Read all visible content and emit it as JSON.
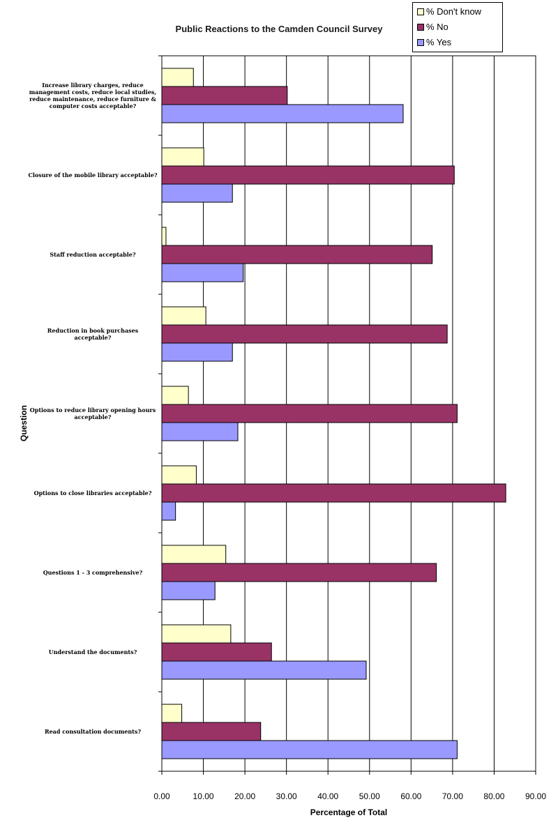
{
  "chart_data": {
    "type": "bar",
    "orientation": "horizontal",
    "title": "Public Reactions to the Camden Council Survey",
    "xlabel": "Percentage of Total",
    "ylabel": "Question",
    "xlim": [
      0,
      90
    ],
    "xticks": [
      "0.00",
      "10.00",
      "20.00",
      "30.00",
      "40.00",
      "50.00",
      "60.00",
      "70.00",
      "80.00",
      "90.00"
    ],
    "grid": "vertical",
    "legend_position": "top-right",
    "categories": [
      "Increase library charges, reduce management costs, reduce local studies, reduce maintenance, reduce furniture & computer costs acceptable?",
      "Closure of the mobile library acceptable?",
      "Staff reduction acceptable?",
      "Reduction in book purchases acceptable?",
      "Options to reduce library opening hours acceptable?",
      "Options to close libraries acceptable?",
      "Questions 1 - 3 comprehensive?",
      "Understand the documents?",
      "Read consultation documents?"
    ],
    "series": [
      {
        "name": "% Don't know",
        "color": "#ffffcc",
        "values": [
          7.6,
          10.1,
          1.0,
          10.6,
          6.4,
          8.3,
          15.4,
          16.6,
          4.8
        ]
      },
      {
        "name": "% No",
        "color": "#993366",
        "values": [
          30.2,
          70.4,
          65.1,
          68.7,
          71.1,
          82.8,
          66.1,
          26.4,
          23.8
        ]
      },
      {
        "name": "% Yes",
        "color": "#9999ff",
        "values": [
          58.1,
          17.0,
          19.6,
          17.0,
          18.3,
          3.3,
          12.8,
          49.2,
          71.1
        ]
      }
    ],
    "legend": [
      "% Don't know",
      "% No",
      "% Yes"
    ]
  }
}
